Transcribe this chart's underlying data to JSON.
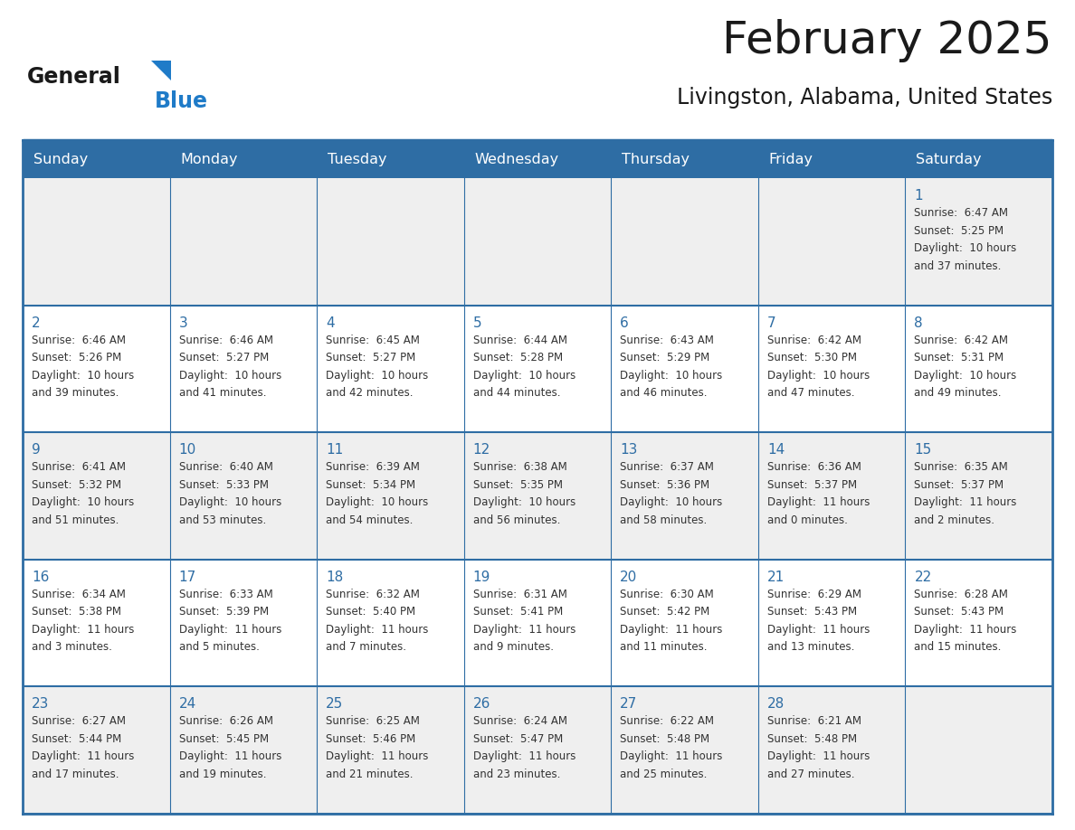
{
  "title": "February 2025",
  "subtitle": "Livingston, Alabama, United States",
  "header_bg": "#2E6DA4",
  "header_text_color": "#FFFFFF",
  "cell_bg_odd": "#EFEFEF",
  "cell_bg_even": "#FFFFFF",
  "border_color": "#2E6DA4",
  "outer_border_color": "#2E6DA4",
  "day_names": [
    "Sunday",
    "Monday",
    "Tuesday",
    "Wednesday",
    "Thursday",
    "Friday",
    "Saturday"
  ],
  "title_color": "#1A1A1A",
  "subtitle_color": "#1A1A1A",
  "day_number_color": "#2E6DA4",
  "cell_text_color": "#333333",
  "logo_general_color": "#1A1A1A",
  "logo_blue_color": "#1F7BC8",
  "weeks": [
    [
      null,
      null,
      null,
      null,
      null,
      null,
      {
        "day": 1,
        "sunrise": "6:47 AM",
        "sunset": "5:25 PM",
        "daylight": "10 hours",
        "daylight2": "and 37 minutes."
      }
    ],
    [
      {
        "day": 2,
        "sunrise": "6:46 AM",
        "sunset": "5:26 PM",
        "daylight": "10 hours",
        "daylight2": "and 39 minutes."
      },
      {
        "day": 3,
        "sunrise": "6:46 AM",
        "sunset": "5:27 PM",
        "daylight": "10 hours",
        "daylight2": "and 41 minutes."
      },
      {
        "day": 4,
        "sunrise": "6:45 AM",
        "sunset": "5:27 PM",
        "daylight": "10 hours",
        "daylight2": "and 42 minutes."
      },
      {
        "day": 5,
        "sunrise": "6:44 AM",
        "sunset": "5:28 PM",
        "daylight": "10 hours",
        "daylight2": "and 44 minutes."
      },
      {
        "day": 6,
        "sunrise": "6:43 AM",
        "sunset": "5:29 PM",
        "daylight": "10 hours",
        "daylight2": "and 46 minutes."
      },
      {
        "day": 7,
        "sunrise": "6:42 AM",
        "sunset": "5:30 PM",
        "daylight": "10 hours",
        "daylight2": "and 47 minutes."
      },
      {
        "day": 8,
        "sunrise": "6:42 AM",
        "sunset": "5:31 PM",
        "daylight": "10 hours",
        "daylight2": "and 49 minutes."
      }
    ],
    [
      {
        "day": 9,
        "sunrise": "6:41 AM",
        "sunset": "5:32 PM",
        "daylight": "10 hours",
        "daylight2": "and 51 minutes."
      },
      {
        "day": 10,
        "sunrise": "6:40 AM",
        "sunset": "5:33 PM",
        "daylight": "10 hours",
        "daylight2": "and 53 minutes."
      },
      {
        "day": 11,
        "sunrise": "6:39 AM",
        "sunset": "5:34 PM",
        "daylight": "10 hours",
        "daylight2": "and 54 minutes."
      },
      {
        "day": 12,
        "sunrise": "6:38 AM",
        "sunset": "5:35 PM",
        "daylight": "10 hours",
        "daylight2": "and 56 minutes."
      },
      {
        "day": 13,
        "sunrise": "6:37 AM",
        "sunset": "5:36 PM",
        "daylight": "10 hours",
        "daylight2": "and 58 minutes."
      },
      {
        "day": 14,
        "sunrise": "6:36 AM",
        "sunset": "5:37 PM",
        "daylight": "11 hours",
        "daylight2": "and 0 minutes."
      },
      {
        "day": 15,
        "sunrise": "6:35 AM",
        "sunset": "5:37 PM",
        "daylight": "11 hours",
        "daylight2": "and 2 minutes."
      }
    ],
    [
      {
        "day": 16,
        "sunrise": "6:34 AM",
        "sunset": "5:38 PM",
        "daylight": "11 hours",
        "daylight2": "and 3 minutes."
      },
      {
        "day": 17,
        "sunrise": "6:33 AM",
        "sunset": "5:39 PM",
        "daylight": "11 hours",
        "daylight2": "and 5 minutes."
      },
      {
        "day": 18,
        "sunrise": "6:32 AM",
        "sunset": "5:40 PM",
        "daylight": "11 hours",
        "daylight2": "and 7 minutes."
      },
      {
        "day": 19,
        "sunrise": "6:31 AM",
        "sunset": "5:41 PM",
        "daylight": "11 hours",
        "daylight2": "and 9 minutes."
      },
      {
        "day": 20,
        "sunrise": "6:30 AM",
        "sunset": "5:42 PM",
        "daylight": "11 hours",
        "daylight2": "and 11 minutes."
      },
      {
        "day": 21,
        "sunrise": "6:29 AM",
        "sunset": "5:43 PM",
        "daylight": "11 hours",
        "daylight2": "and 13 minutes."
      },
      {
        "day": 22,
        "sunrise": "6:28 AM",
        "sunset": "5:43 PM",
        "daylight": "11 hours",
        "daylight2": "and 15 minutes."
      }
    ],
    [
      {
        "day": 23,
        "sunrise": "6:27 AM",
        "sunset": "5:44 PM",
        "daylight": "11 hours",
        "daylight2": "and 17 minutes."
      },
      {
        "day": 24,
        "sunrise": "6:26 AM",
        "sunset": "5:45 PM",
        "daylight": "11 hours",
        "daylight2": "and 19 minutes."
      },
      {
        "day": 25,
        "sunrise": "6:25 AM",
        "sunset": "5:46 PM",
        "daylight": "11 hours",
        "daylight2": "and 21 minutes."
      },
      {
        "day": 26,
        "sunrise": "6:24 AM",
        "sunset": "5:47 PM",
        "daylight": "11 hours",
        "daylight2": "and 23 minutes."
      },
      {
        "day": 27,
        "sunrise": "6:22 AM",
        "sunset": "5:48 PM",
        "daylight": "11 hours",
        "daylight2": "and 25 minutes."
      },
      {
        "day": 28,
        "sunrise": "6:21 AM",
        "sunset": "5:48 PM",
        "daylight": "11 hours",
        "daylight2": "and 27 minutes."
      },
      null
    ]
  ]
}
